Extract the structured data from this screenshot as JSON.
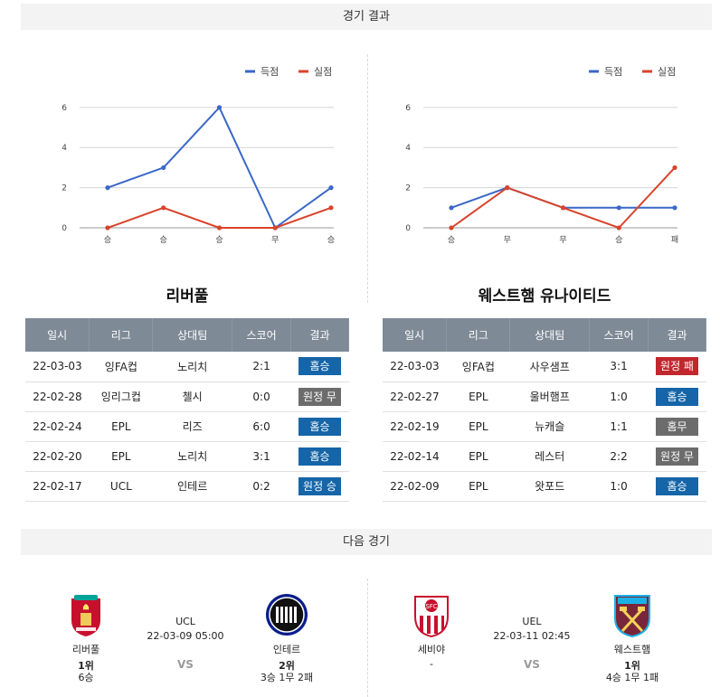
{
  "sections": {
    "results_title": "경기 결과",
    "next_title": "다음 경기"
  },
  "legend": {
    "scored": "득점",
    "conceded": "실점"
  },
  "colors": {
    "scored": "#3a67c8",
    "conceded": "#d9432b",
    "header": "#7e8a96",
    "win": "#1565a8",
    "loss": "#c1272d",
    "draw": "#6c6c6c"
  },
  "chart_data": [
    {
      "type": "line",
      "categories": [
        "승",
        "승",
        "승",
        "무",
        "승"
      ],
      "series": [
        {
          "name": "득점",
          "values": [
            2,
            3,
            6,
            0,
            2
          ]
        },
        {
          "name": "실점",
          "values": [
            0,
            1,
            0,
            0,
            1
          ]
        }
      ],
      "yticks": [
        "0",
        "2",
        "4",
        "6"
      ],
      "ylim": [
        0,
        7
      ],
      "grid": true,
      "legend": "top-right"
    },
    {
      "type": "line",
      "categories": [
        "승",
        "무",
        "무",
        "승",
        "패"
      ],
      "series": [
        {
          "name": "득점",
          "values": [
            1,
            2,
            1,
            1,
            1
          ]
        },
        {
          "name": "실점",
          "values": [
            0,
            2,
            1,
            0,
            3
          ]
        }
      ],
      "yticks": [
        "0",
        "2",
        "4",
        "6"
      ],
      "ylim": [
        0,
        7
      ],
      "grid": true,
      "legend": "top-right"
    }
  ],
  "columns": [
    "일시",
    "리그",
    "상대팀",
    "스코어",
    "결과"
  ],
  "teams": [
    {
      "name": "리버풀",
      "rows": [
        {
          "date": "22-03-03",
          "league": "잉FA컵",
          "opponent": "노리치",
          "score": "2:1",
          "result": "홈승",
          "color": "blue"
        },
        {
          "date": "22-02-28",
          "league": "잉리그컵",
          "opponent": "첼시",
          "score": "0:0",
          "result": "원정 무",
          "color": "gray"
        },
        {
          "date": "22-02-24",
          "league": "EPL",
          "opponent": "리즈",
          "score": "6:0",
          "result": "홈승",
          "color": "blue"
        },
        {
          "date": "22-02-20",
          "league": "EPL",
          "opponent": "노리치",
          "score": "3:1",
          "result": "홈승",
          "color": "blue"
        },
        {
          "date": "22-02-17",
          "league": "UCL",
          "opponent": "인테르",
          "score": "0:2",
          "result": "원정 승",
          "color": "blue"
        }
      ]
    },
    {
      "name": "웨스트햄 유나이티드",
      "rows": [
        {
          "date": "22-03-03",
          "league": "잉FA컵",
          "opponent": "사우샘프",
          "score": "3:1",
          "result": "원정 패",
          "color": "red"
        },
        {
          "date": "22-02-27",
          "league": "EPL",
          "opponent": "울버햄프",
          "score": "1:0",
          "result": "홈승",
          "color": "blue"
        },
        {
          "date": "22-02-19",
          "league": "EPL",
          "opponent": "뉴캐슬",
          "score": "1:1",
          "result": "홈무",
          "color": "gray"
        },
        {
          "date": "22-02-14",
          "league": "EPL",
          "opponent": "레스터",
          "score": "2:2",
          "result": "원정 무",
          "color": "gray"
        },
        {
          "date": "22-02-09",
          "league": "EPL",
          "opponent": "왓포드",
          "score": "1:0",
          "result": "홈승",
          "color": "blue"
        }
      ]
    }
  ],
  "next_matches": [
    {
      "home": {
        "name": "리버풀",
        "rank": "1위",
        "record": "6승"
      },
      "league": "UCL",
      "datetime": "22-03-09 05:00",
      "vs": "VS",
      "away": {
        "name": "인테르",
        "rank": "2위",
        "record": "3승 1무 2패"
      }
    },
    {
      "home": {
        "name": "세비야",
        "rank": "",
        "record": "-"
      },
      "league": "UEL",
      "datetime": "22-03-11 02:45",
      "vs": "VS",
      "away": {
        "name": "웨스트햄",
        "rank": "1위",
        "record": "4승 1무 1패"
      }
    }
  ]
}
